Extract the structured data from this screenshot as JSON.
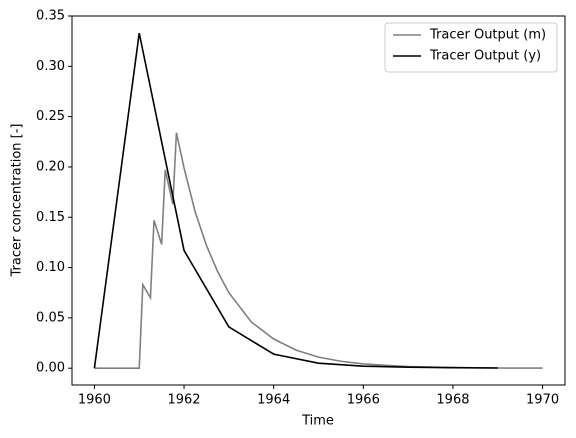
{
  "chart_data": {
    "type": "line",
    "xlabel": "Time",
    "ylabel": "Tracer concentration [-]",
    "xlim": [
      1959.5,
      1970.5
    ],
    "xticks": [
      1960,
      1962,
      1964,
      1966,
      1968,
      1970
    ],
    "ylim": [
      -0.0167,
      0.35
    ],
    "yticks": [
      {
        "value": 0,
        "label": "0.00"
      },
      {
        "value": 0.05,
        "label": "0.05"
      },
      {
        "value": 0.1,
        "label": "0.10"
      },
      0.15,
      {
        "value": 0.2,
        "label": "0.20"
      },
      0.25,
      {
        "value": 0.3,
        "label": "0.30"
      },
      0.35
    ],
    "legend": "upper right",
    "series": [
      {
        "name": "Tracer Output (m)",
        "color": "#808080",
        "x": [
          1960,
          1961,
          1961.08,
          1961.25,
          1961.33,
          1961.5,
          1961.58,
          1961.75,
          1961.83,
          1962,
          1962.25,
          1962.5,
          1962.75,
          1963,
          1963.5,
          1964,
          1964.5,
          1965,
          1965.5,
          1966,
          1967,
          1968,
          1969,
          1970
        ],
        "values": [
          0,
          0,
          0.083,
          0.07,
          0.147,
          0.123,
          0.197,
          0.163,
          0.234,
          0.199,
          0.155,
          0.122,
          0.096,
          0.075,
          0.046,
          0.029,
          0.018,
          0.011,
          0.0069,
          0.0042,
          0.0016,
          0.0006,
          0.0002,
          0.0001
        ]
      },
      {
        "name": "Tracer Output (y)",
        "color": "#000000",
        "x": [
          1960,
          1961,
          1962,
          1963,
          1964,
          1965,
          1966,
          1967,
          1968,
          1969
        ],
        "values": [
          0,
          0.333,
          0.117,
          0.041,
          0.014,
          0.005,
          0.002,
          0.001,
          0.0005,
          0.0002
        ]
      }
    ]
  }
}
